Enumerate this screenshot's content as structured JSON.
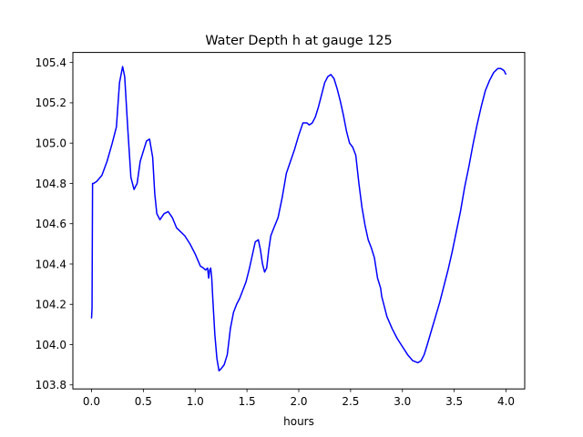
{
  "chart_data": {
    "type": "line",
    "title": "Water Depth h at gauge 125",
    "xlabel": "hours",
    "ylabel": "",
    "xlim": [
      -0.18,
      4.18
    ],
    "ylim": [
      103.78,
      105.45
    ],
    "xticks": [
      0.0,
      0.5,
      1.0,
      1.5,
      2.0,
      2.5,
      3.0,
      3.5,
      4.0
    ],
    "xtick_labels": [
      "0.0",
      "0.5",
      "1.0",
      "1.5",
      "2.0",
      "2.5",
      "3.0",
      "3.5",
      "4.0"
    ],
    "yticks": [
      103.8,
      104.0,
      104.2,
      104.4,
      104.6,
      104.8,
      105.0,
      105.2,
      105.4
    ],
    "ytick_labels": [
      "103.8",
      "104.0",
      "104.2",
      "104.4",
      "104.6",
      "104.8",
      "105.0",
      "105.2",
      "105.4"
    ],
    "grid": false,
    "series": [
      {
        "color": "#0000ff",
        "x": [
          0.0,
          0.005,
          0.01,
          0.02,
          0.05,
          0.1,
          0.15,
          0.2,
          0.24,
          0.27,
          0.3,
          0.32,
          0.35,
          0.38,
          0.41,
          0.44,
          0.47,
          0.5,
          0.53,
          0.56,
          0.59,
          0.61,
          0.63,
          0.66,
          0.7,
          0.74,
          0.78,
          0.82,
          0.86,
          0.9,
          0.95,
          1.0,
          1.05,
          1.08,
          1.1,
          1.12,
          1.13,
          1.14,
          1.15,
          1.16,
          1.17,
          1.19,
          1.21,
          1.23,
          1.25,
          1.28,
          1.31,
          1.34,
          1.37,
          1.4,
          1.43,
          1.46,
          1.49,
          1.52,
          1.55,
          1.58,
          1.61,
          1.63,
          1.65,
          1.67,
          1.69,
          1.71,
          1.73,
          1.76,
          1.8,
          1.84,
          1.88,
          1.92,
          1.96,
          2.0,
          2.04,
          2.08,
          2.1,
          2.13,
          2.16,
          2.19,
          2.22,
          2.25,
          2.28,
          2.31,
          2.34,
          2.37,
          2.4,
          2.43,
          2.46,
          2.49,
          2.52,
          2.55,
          2.58,
          2.61,
          2.64,
          2.67,
          2.7,
          2.73,
          2.76,
          2.79,
          2.8,
          2.82,
          2.85,
          2.9,
          2.95,
          3.0,
          3.05,
          3.1,
          3.15,
          3.18,
          3.21,
          3.24,
          3.28,
          3.32,
          3.36,
          3.4,
          3.44,
          3.48,
          3.52,
          3.56,
          3.58,
          3.6,
          3.64,
          3.68,
          3.72,
          3.76,
          3.8,
          3.84,
          3.88,
          3.92,
          3.95,
          3.98,
          4.0
        ],
        "y": [
          104.13,
          104.18,
          104.8,
          104.8,
          104.81,
          104.84,
          104.91,
          105.0,
          105.08,
          105.3,
          105.38,
          105.33,
          105.07,
          104.83,
          104.77,
          104.8,
          104.91,
          104.96,
          105.01,
          105.02,
          104.93,
          104.75,
          104.65,
          104.62,
          104.65,
          104.66,
          104.63,
          104.58,
          104.56,
          104.54,
          104.5,
          104.45,
          104.39,
          104.38,
          104.37,
          104.38,
          104.33,
          104.37,
          104.38,
          104.33,
          104.23,
          104.05,
          103.93,
          103.87,
          103.88,
          103.9,
          103.95,
          104.08,
          104.16,
          104.2,
          104.23,
          104.27,
          104.31,
          104.37,
          104.44,
          104.51,
          104.52,
          104.47,
          104.4,
          104.36,
          104.38,
          104.47,
          104.54,
          104.58,
          104.63,
          104.73,
          104.85,
          104.91,
          104.97,
          105.04,
          105.1,
          105.1,
          105.09,
          105.1,
          105.13,
          105.18,
          105.24,
          105.3,
          105.33,
          105.34,
          105.32,
          105.27,
          105.21,
          105.14,
          105.06,
          105.0,
          104.98,
          104.94,
          104.8,
          104.68,
          104.59,
          104.52,
          104.48,
          104.43,
          104.33,
          104.28,
          104.24,
          104.2,
          104.14,
          104.08,
          104.03,
          103.99,
          103.95,
          103.92,
          103.91,
          103.92,
          103.95,
          104.0,
          104.07,
          104.14,
          104.21,
          104.29,
          104.37,
          104.46,
          104.56,
          104.66,
          104.72,
          104.78,
          104.88,
          104.99,
          105.09,
          105.18,
          105.26,
          105.31,
          105.35,
          105.37,
          105.37,
          105.36,
          105.34
        ]
      }
    ]
  }
}
